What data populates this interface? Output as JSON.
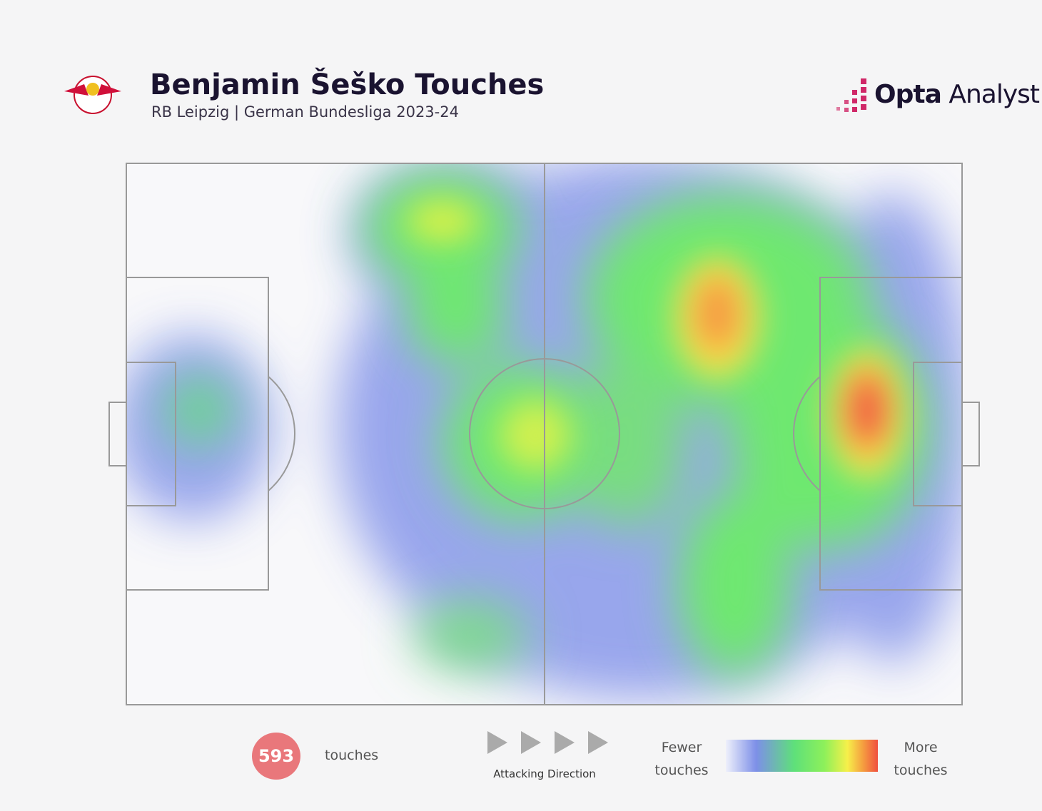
{
  "header": {
    "title": "Benjamin Šeško Touches",
    "subtitle": "RB Leipzig | German Bundesliga 2023-24",
    "brand": {
      "bold": "Opta",
      "light": "Analyst"
    }
  },
  "footer": {
    "touches": {
      "count": 593,
      "label": "touches"
    },
    "direction": "Attacking Direction",
    "scale": {
      "low": "Fewer touches",
      "high": "More touches"
    }
  }
}
